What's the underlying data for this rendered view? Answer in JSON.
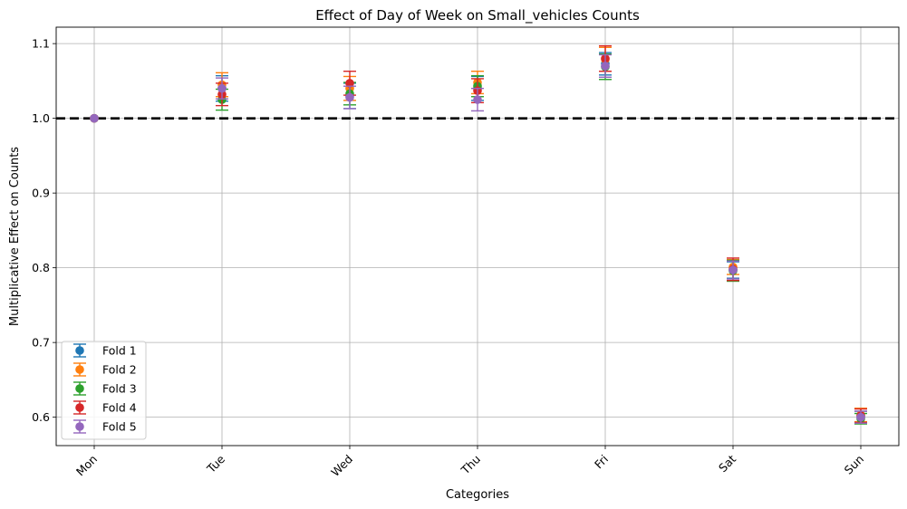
{
  "chart_data": {
    "type": "scatter",
    "title": "Effect of Day of Week on Small_vehicles Counts",
    "xlabel": "Categories",
    "ylabel": "Multiplicative Effect on Counts",
    "categories": [
      "Mon",
      "Tue",
      "Wed",
      "Thu",
      "Fri",
      "Sat",
      "Sun"
    ],
    "ylim": [
      0.562,
      1.122
    ],
    "yticks": [
      "0.6",
      "0.7",
      "0.8",
      "0.9",
      "1.0",
      "1.1"
    ],
    "grid": true,
    "legend_position": "lower-left",
    "reference_line": 1.0,
    "series": [
      {
        "name": "Fold 1",
        "color": "#1f77b4",
        "values": [
          1.0,
          1.04,
          1.03,
          1.04,
          1.073,
          0.797,
          0.6
        ],
        "errors": [
          0.0,
          0.017,
          0.017,
          0.016,
          0.015,
          0.011,
          0.008
        ]
      },
      {
        "name": "Fold 2",
        "color": "#ff7f0e",
        "values": [
          1.0,
          1.045,
          1.04,
          1.048,
          1.079,
          0.801,
          0.603
        ],
        "errors": [
          0.0,
          0.016,
          0.016,
          0.015,
          0.016,
          0.01,
          0.009
        ]
      },
      {
        "name": "Fold 3",
        "color": "#2ca02c",
        "values": [
          1.0,
          1.025,
          1.033,
          1.043,
          1.069,
          0.796,
          0.598
        ],
        "errors": [
          0.0,
          0.014,
          0.015,
          0.014,
          0.017,
          0.014,
          0.007
        ]
      },
      {
        "name": "Fold 4",
        "color": "#d62728",
        "values": [
          1.0,
          1.032,
          1.047,
          1.037,
          1.08,
          0.798,
          0.602
        ],
        "errors": [
          0.0,
          0.015,
          0.016,
          0.016,
          0.017,
          0.015,
          0.009
        ]
      },
      {
        "name": "Fold 5",
        "color": "#9467bd",
        "values": [
          1.0,
          1.04,
          1.028,
          1.025,
          1.07,
          0.797,
          0.6
        ],
        "errors": [
          0.0,
          0.014,
          0.015,
          0.015,
          0.015,
          0.012,
          0.008
        ]
      }
    ]
  }
}
